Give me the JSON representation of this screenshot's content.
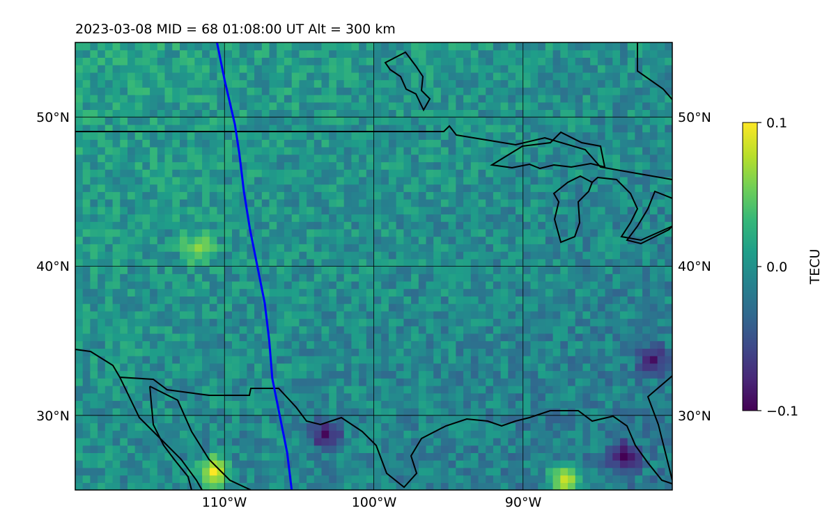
{
  "title": "2023-03-08  MID =  68    01:08:00  UT  Alt = 300 km",
  "map": {
    "lon_range": [
      -120,
      -80
    ],
    "lat_range": [
      25,
      55
    ],
    "lat_gridlines": [
      30,
      40,
      50
    ],
    "lon_gridlines": [
      -110,
      -100,
      -90
    ],
    "lat_labels": [
      "30°N",
      "40°N",
      "50°N"
    ],
    "lon_labels": [
      "110°W",
      "100°W",
      "90°W"
    ],
    "satellite_track_color": "#0000ff",
    "satellite_track": [
      [
        -110.5,
        55
      ],
      [
        -110.0,
        52.5
      ],
      [
        -109.3,
        49.5
      ],
      [
        -109.0,
        47.5
      ],
      [
        -108.7,
        45
      ],
      [
        -108.3,
        42.5
      ],
      [
        -107.8,
        40
      ],
      [
        -107.3,
        37.5
      ],
      [
        -107.0,
        35
      ],
      [
        -106.8,
        32.5
      ],
      [
        -106.3,
        30
      ],
      [
        -105.8,
        27.5
      ],
      [
        -105.5,
        25
      ]
    ],
    "notable_values": [
      {
        "lon": -111.0,
        "lat": 26.0,
        "value": 0.1
      },
      {
        "lon": -87.5,
        "lat": 25.3,
        "value": 0.1
      },
      {
        "lon": -112.0,
        "lat": 41.0,
        "value": 0.07
      },
      {
        "lon": -103.5,
        "lat": 28.5,
        "value": -0.1
      },
      {
        "lon": -83.5,
        "lat": 27.0,
        "value": -0.1
      },
      {
        "lon": -81.5,
        "lat": 33.5,
        "value": -0.09
      }
    ]
  },
  "colorbar": {
    "label": "TECU",
    "min": -0.1,
    "max": 0.1,
    "tick_labels": [
      "−0.1",
      "0.0",
      "0.1"
    ],
    "colormap": "viridis"
  },
  "colors": {
    "viridis_stops": [
      "#440154",
      "#482878",
      "#3e4989",
      "#31688e",
      "#26828e",
      "#1f9e89",
      "#35b779",
      "#6ece58",
      "#b5de2b",
      "#fde725"
    ]
  }
}
